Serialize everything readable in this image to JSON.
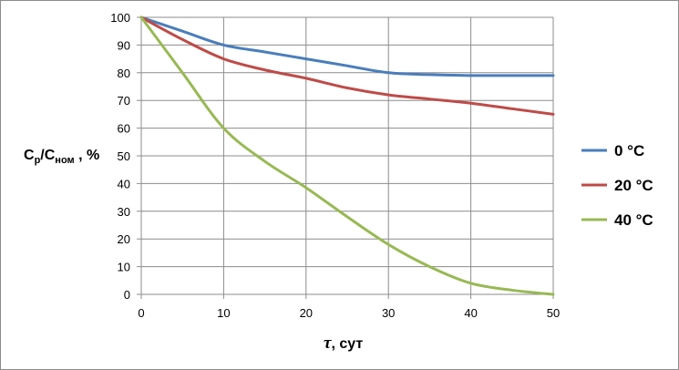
{
  "chart_data": {
    "type": "line",
    "title": "",
    "xlabel": {
      "symbol": "τ",
      "rest": ", сут"
    },
    "ylabel": {
      "base": "C",
      "sub1": "p",
      "sep": "/C",
      "sub2": "ном",
      "rest": " , %"
    },
    "xlim": [
      0,
      50
    ],
    "ylim": [
      0,
      100
    ],
    "xticks": [
      0,
      10,
      20,
      30,
      40,
      50
    ],
    "yticks": [
      0,
      10,
      20,
      30,
      40,
      50,
      60,
      70,
      80,
      90,
      100
    ],
    "grid": true,
    "legend_position": "right",
    "series": [
      {
        "name": "0  °C",
        "color": "#4a7ebb",
        "x": [
          0,
          5,
          10,
          15,
          20,
          25,
          30,
          35,
          40,
          45,
          50
        ],
        "y": [
          100,
          95,
          90,
          87.5,
          85,
          82.5,
          80,
          79.3,
          79,
          79,
          79
        ]
      },
      {
        "name": "20  °C",
        "color": "#be4b48",
        "x": [
          0,
          5,
          10,
          15,
          20,
          25,
          30,
          35,
          40,
          45,
          50
        ],
        "y": [
          100,
          92,
          85,
          81,
          78,
          74.5,
          72,
          70.5,
          69,
          67,
          65
        ]
      },
      {
        "name": "40  °C",
        "color": "#98b954",
        "x": [
          0,
          5,
          10,
          15,
          20,
          25,
          30,
          35,
          40,
          45,
          50
        ],
        "y": [
          100,
          80,
          60,
          48,
          38.5,
          28,
          18,
          10,
          4,
          1.5,
          0
        ]
      }
    ]
  }
}
